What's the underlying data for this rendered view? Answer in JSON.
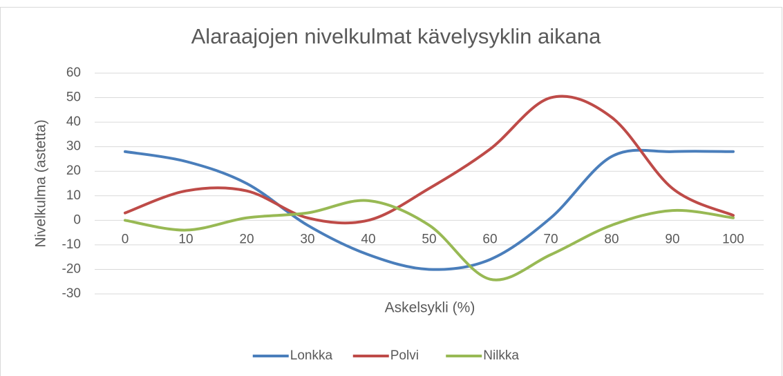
{
  "chart_data": {
    "type": "line",
    "title": "Alaraajojen nivelkulmat kävelysyklin aikana",
    "x_label": "Askelsykli (%)",
    "y_label": "Nivelkulma (astetta)",
    "categories": [
      "0",
      "10",
      "20",
      "30",
      "40",
      "50",
      "60",
      "70",
      "80",
      "90",
      "100"
    ],
    "series": [
      {
        "name": "Lonkka",
        "color": "#4a7ebb",
        "values": [
          28,
          24,
          15,
          -2,
          -14,
          -20,
          -16,
          1,
          26,
          28,
          28
        ]
      },
      {
        "name": "Polvi",
        "color": "#be4b48",
        "values": [
          3,
          12,
          12,
          1,
          0,
          13,
          29,
          50,
          42,
          13,
          2
        ]
      },
      {
        "name": "Nilkka",
        "color": "#98b954",
        "values": [
          0,
          -4,
          1,
          3,
          8,
          -2,
          -24,
          -14,
          -2,
          4,
          1
        ]
      }
    ],
    "ylim": [
      -30,
      60
    ],
    "yticks": [
      -30,
      -20,
      -10,
      0,
      10,
      20,
      30,
      40,
      50,
      60
    ],
    "grid": true,
    "smooth": true,
    "legend": "bottom"
  }
}
